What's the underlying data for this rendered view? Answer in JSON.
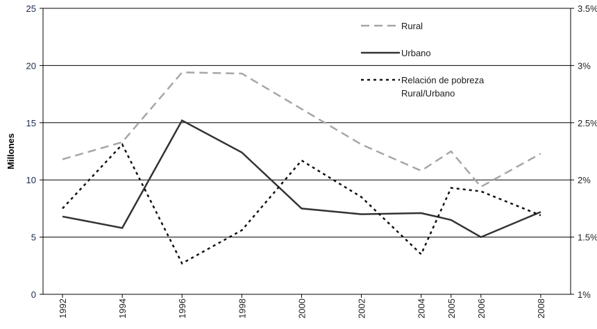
{
  "chart_data": {
    "type": "line",
    "ylabel": "Millones",
    "x": [
      1992,
      1994,
      1996,
      1998,
      2000,
      2002,
      2004,
      2005,
      2006,
      2008
    ],
    "xlim": [
      1991.35,
      2009
    ],
    "xticks": [
      1992,
      1994,
      1996,
      1998,
      2000,
      2002,
      2004,
      2005,
      2006,
      2008
    ],
    "ylim": [
      0,
      25
    ],
    "yticks": [
      0,
      5,
      10,
      15,
      20,
      25
    ],
    "y2lim": [
      1,
      3.5
    ],
    "y2ticks": [
      {
        "value": 1,
        "label": "1%"
      },
      {
        "value": 1.5,
        "label": "1.5%"
      },
      {
        "value": 2,
        "label": "2%"
      },
      {
        "value": 2.5,
        "label": "2.5%"
      },
      {
        "value": 3,
        "label": "3%"
      },
      {
        "value": 3.5,
        "label": "3.5%"
      }
    ],
    "grid": true,
    "series": [
      {
        "name": "Rural",
        "color": "#a6a6a6",
        "dash": "12 7",
        "values": [
          11.8,
          13.3,
          19.4,
          19.3,
          16.2,
          13.1,
          10.8,
          12.5,
          9.4,
          12.3
        ]
      },
      {
        "name": "Urbano",
        "color": "#333333",
        "dash": "none",
        "values": [
          6.8,
          5.8,
          15.2,
          12.4,
          7.5,
          7.0,
          7.1,
          6.5,
          5.0,
          7.2
        ]
      },
      {
        "name": "Relación de pobreza Rural/Urbano",
        "color": "#111111",
        "dash": "4 5",
        "axis": "y2",
        "values": [
          1.75,
          2.31,
          1.27,
          1.56,
          2.17,
          1.85,
          1.35,
          1.93,
          1.9,
          1.69
        ]
      }
    ]
  }
}
